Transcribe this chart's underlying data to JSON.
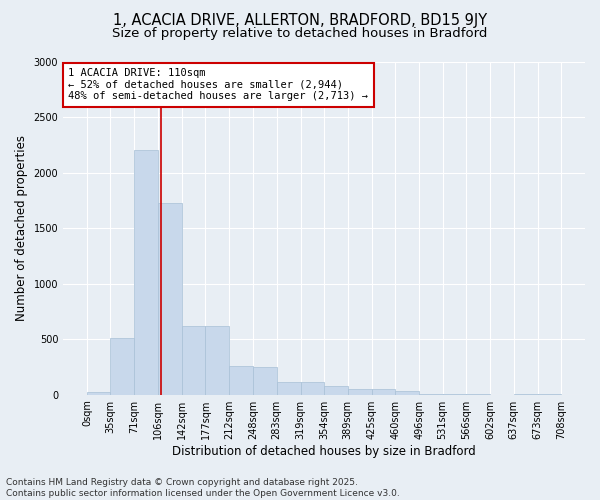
{
  "title_line1": "1, ACACIA DRIVE, ALLERTON, BRADFORD, BD15 9JY",
  "title_line2": "Size of property relative to detached houses in Bradford",
  "xlabel": "Distribution of detached houses by size in Bradford",
  "ylabel": "Number of detached properties",
  "bar_edges": [
    0,
    35,
    71,
    106,
    142,
    177,
    212,
    248,
    283,
    319,
    354,
    389,
    425,
    460,
    496,
    531,
    566,
    602,
    637,
    673,
    708
  ],
  "bar_heights": [
    20,
    510,
    2200,
    1730,
    620,
    620,
    255,
    250,
    115,
    110,
    75,
    50,
    55,
    30,
    5,
    5,
    5,
    0,
    5,
    5
  ],
  "bar_color": "#c8d8eb",
  "bar_edge_color": "#a8c0d6",
  "vline_x": 110,
  "vline_color": "#cc0000",
  "ylim": [
    0,
    3000
  ],
  "yticks": [
    0,
    500,
    1000,
    1500,
    2000,
    2500,
    3000
  ],
  "annotation_title": "1 ACACIA DRIVE: 110sqm",
  "annotation_line1": "← 52% of detached houses are smaller (2,944)",
  "annotation_line2": "48% of semi-detached houses are larger (2,713) →",
  "annotation_box_color": "#ffffff",
  "annotation_edge_color": "#cc0000",
  "bg_color": "#e8eef4",
  "grid_color": "#ffffff",
  "footer_line1": "Contains HM Land Registry data © Crown copyright and database right 2025.",
  "footer_line2": "Contains public sector information licensed under the Open Government Licence v3.0.",
  "title_fontsize": 10.5,
  "subtitle_fontsize": 9.5,
  "ylabel_fontsize": 8.5,
  "xlabel_fontsize": 8.5,
  "tick_fontsize": 7,
  "annotation_fontsize": 7.5,
  "footer_fontsize": 6.5
}
